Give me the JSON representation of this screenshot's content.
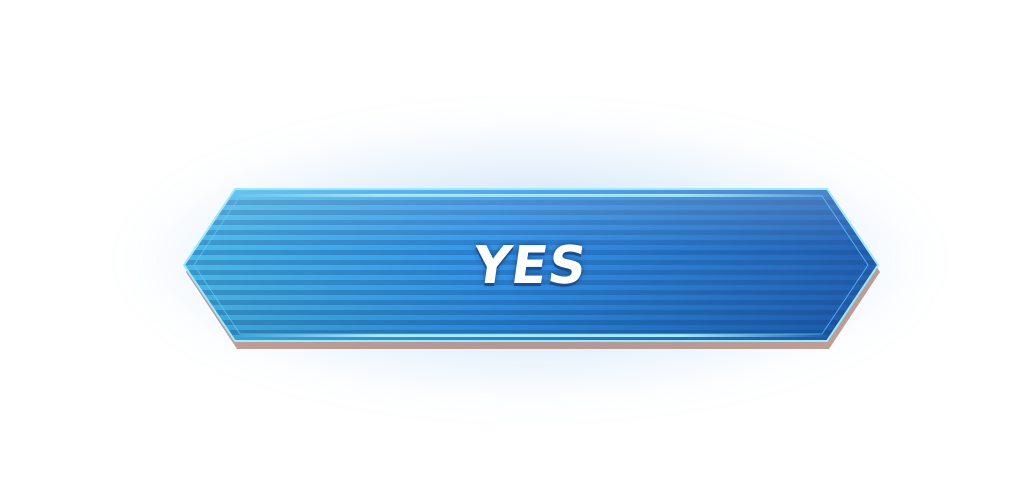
{
  "button": {
    "label": "YES",
    "icon": "hexagonal-confirm-button",
    "colors": {
      "fill_left": "#3fb3e6",
      "fill_center": "#2a8ee8",
      "fill_right": "#1c5fb7",
      "border": "#8fe7ff",
      "stripe": "#10488f",
      "shadow": "#8a5040"
    }
  }
}
